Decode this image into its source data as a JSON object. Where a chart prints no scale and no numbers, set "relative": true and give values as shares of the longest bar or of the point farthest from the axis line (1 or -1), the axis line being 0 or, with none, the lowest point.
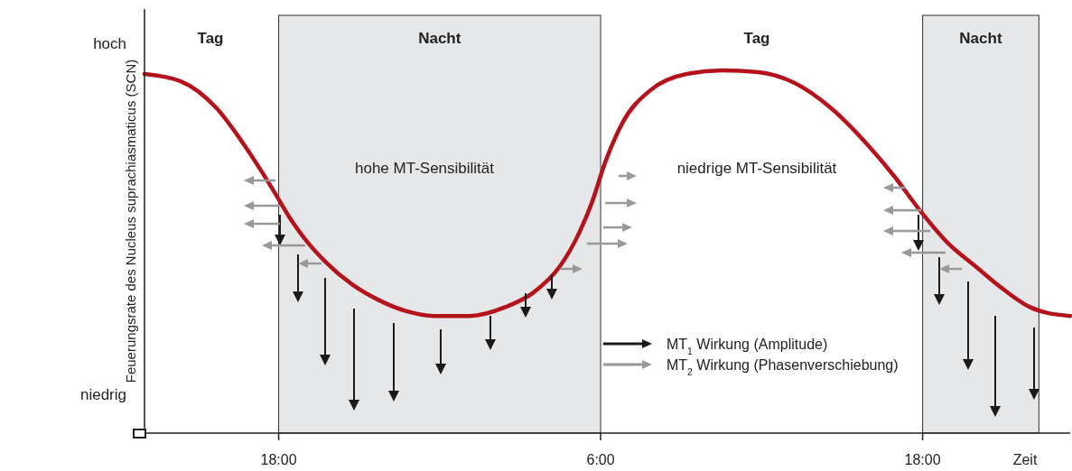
{
  "chart_data": {
    "type": "line",
    "relative": true,
    "ylabel": "Feuerungsrate des Nucleus suprachiasmaticus (SCN)",
    "xlabel": "Zeit",
    "xlim": [
      "2000-01-01T13:00",
      "2000-01-02T23:30"
    ],
    "xticks": [
      {
        "value": "2000-01-01T18:00",
        "label": "18:00"
      },
      {
        "value": "2000-01-02T06:00",
        "label": "6:00"
      },
      {
        "value": "2000-01-02T18:00",
        "label": "18:00"
      }
    ],
    "grid": false,
    "marker": "none",
    "line_style": "solid",
    "series": [
      {
        "color": "#b5121b",
        "x": [
          "2000-01-01T13:00",
          "2000-01-01T14:21",
          "2000-01-01T15:41",
          "2000-01-01T16:42",
          "2000-01-01T17:22",
          "2000-01-01T17:53",
          "2000-01-01T18:23",
          "2000-01-01T19:04",
          "2000-01-01T19:44",
          "2000-01-01T20:44",
          "2000-01-01T21:45",
          "2000-01-01T22:46",
          "2000-01-01T23:46",
          "2000-01-02T01:07",
          "2000-01-02T02:28",
          "2000-01-02T03:28",
          "2000-01-02T04:29",
          "2000-01-02T05:10",
          "2000-01-02T05:40",
          "2000-01-02T06:10",
          "2000-01-02T06:50",
          "2000-01-02T07:51",
          "2000-01-02T09:12",
          "2000-01-02T10:32",
          "2000-01-02T11:53",
          "2000-01-02T13:14",
          "2000-01-02T14:35",
          "2000-01-02T15:56",
          "2000-01-02T16:56",
          "2000-01-02T17:57",
          "2000-01-02T18:58",
          "2000-01-02T19:58",
          "2000-01-02T20:59",
          "2000-01-02T21:59",
          "2000-01-02T22:40",
          "2000-01-02T23:30"
        ],
        "values": [
          0.99,
          0.97,
          0.896,
          0.796,
          0.721,
          0.659,
          0.597,
          0.527,
          0.473,
          0.41,
          0.366,
          0.336,
          0.323,
          0.323,
          0.348,
          0.386,
          0.46,
          0.547,
          0.634,
          0.746,
          0.858,
          0.945,
          0.99,
          1.0,
          0.995,
          0.965,
          0.896,
          0.796,
          0.709,
          0.609,
          0.522,
          0.46,
          0.398,
          0.348,
          0.331,
          0.323
        ]
      }
    ],
    "bands": [
      {
        "axis": "x",
        "from": "2000-01-01T18:00",
        "to": "2000-01-02T06:00",
        "label": "Nacht",
        "color": "#e6e7e8"
      },
      {
        "axis": "x",
        "from": "2000-01-02T18:00",
        "to": "2000-01-02T22:20",
        "label": "Nacht",
        "color": "#e6e7e8"
      }
    ],
    "annotations": [
      "hoch",
      "niedrig",
      "Tag",
      "Tag",
      "hohe MT-Sensibilität",
      "niedrige MT-Sensibilität",
      "MT$_{1}$ Wirkung (Amplitude)",
      "MT$_{2}$ Wirkung (Phasenverschiebung)"
    ]
  }
}
